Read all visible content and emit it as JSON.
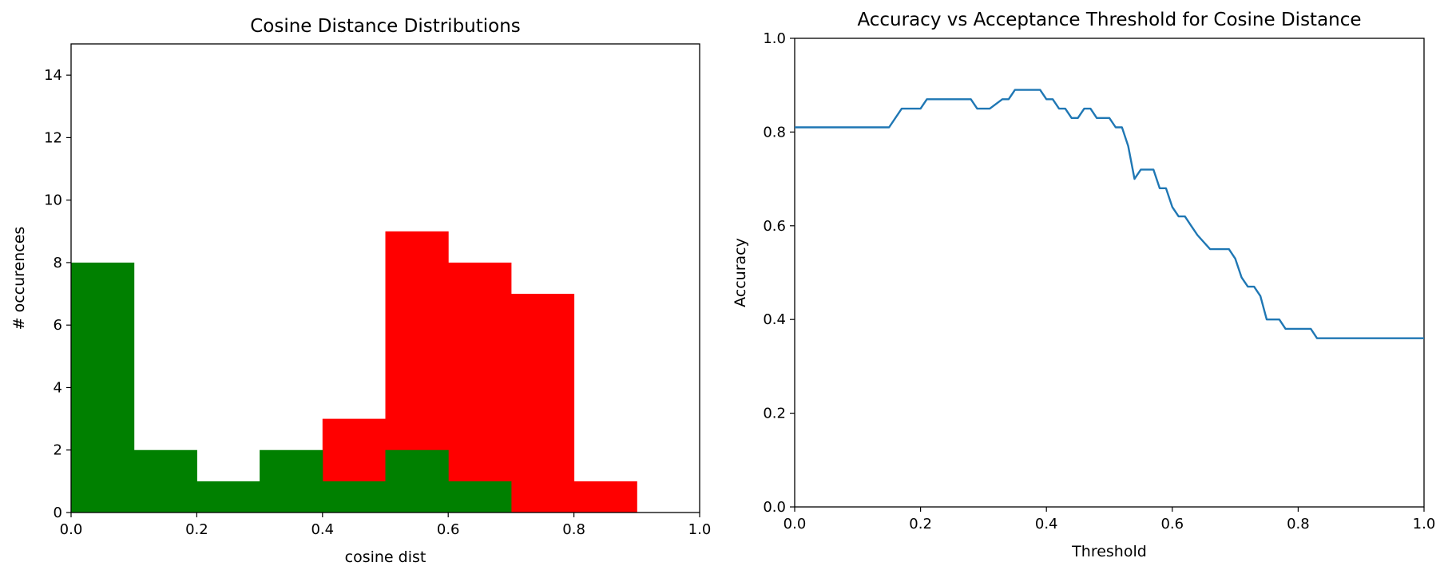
{
  "chart_data": [
    {
      "type": "bar",
      "title": "Cosine Distance Distributions",
      "xlabel": "cosine dist",
      "ylabel": "# occurences",
      "xlim": [
        0,
        1
      ],
      "ylim": [
        0,
        15
      ],
      "xticks": [
        "0.0",
        "0.2",
        "0.4",
        "0.6",
        "0.8",
        "1.0"
      ],
      "yticks": [
        "0",
        "2",
        "4",
        "6",
        "8",
        "10",
        "12",
        "14"
      ],
      "bin_edges": [
        0.0,
        0.1,
        0.2,
        0.3,
        0.4,
        0.5,
        0.6,
        0.7,
        0.8,
        0.9,
        1.0
      ],
      "series": [
        {
          "color": "#ff0000",
          "values": [
            0,
            0,
            0,
            0,
            3,
            9,
            8,
            7,
            1,
            0
          ]
        },
        {
          "color": "#008000",
          "values": [
            8,
            2,
            1,
            2,
            1,
            2,
            1,
            0,
            0,
            0
          ]
        }
      ]
    },
    {
      "type": "line",
      "title": "Accuracy vs Acceptance Threshold for Cosine Distance",
      "xlabel": "Threshold",
      "ylabel": "Accuracy",
      "xlim": [
        0,
        1
      ],
      "ylim": [
        0,
        1
      ],
      "xticks": [
        "0.0",
        "0.2",
        "0.4",
        "0.6",
        "0.8",
        "1.0"
      ],
      "yticks": [
        "0.0",
        "0.2",
        "0.4",
        "0.6",
        "0.8",
        "1.0"
      ],
      "series": [
        {
          "color": "#1f77b4",
          "x": [
            0.0,
            0.15,
            0.17,
            0.2,
            0.21,
            0.27,
            0.28,
            0.29,
            0.3,
            0.31,
            0.33,
            0.34,
            0.35,
            0.39,
            0.4,
            0.41,
            0.42,
            0.43,
            0.44,
            0.45,
            0.46,
            0.47,
            0.48,
            0.5,
            0.51,
            0.52,
            0.53,
            0.54,
            0.55,
            0.56,
            0.57,
            0.58,
            0.59,
            0.6,
            0.61,
            0.62,
            0.63,
            0.64,
            0.66,
            0.69,
            0.7,
            0.71,
            0.72,
            0.73,
            0.74,
            0.75,
            0.76,
            0.77,
            0.78,
            0.8,
            0.81,
            0.82,
            0.83,
            1.0
          ],
          "y": [
            0.81,
            0.81,
            0.85,
            0.85,
            0.87,
            0.87,
            0.87,
            0.85,
            0.85,
            0.85,
            0.87,
            0.87,
            0.89,
            0.89,
            0.87,
            0.87,
            0.85,
            0.85,
            0.83,
            0.83,
            0.85,
            0.85,
            0.83,
            0.83,
            0.81,
            0.81,
            0.77,
            0.7,
            0.72,
            0.72,
            0.72,
            0.68,
            0.68,
            0.64,
            0.62,
            0.62,
            0.6,
            0.58,
            0.55,
            0.55,
            0.53,
            0.49,
            0.47,
            0.47,
            0.45,
            0.4,
            0.4,
            0.4,
            0.38,
            0.38,
            0.38,
            0.38,
            0.36,
            0.36
          ]
        }
      ]
    }
  ]
}
